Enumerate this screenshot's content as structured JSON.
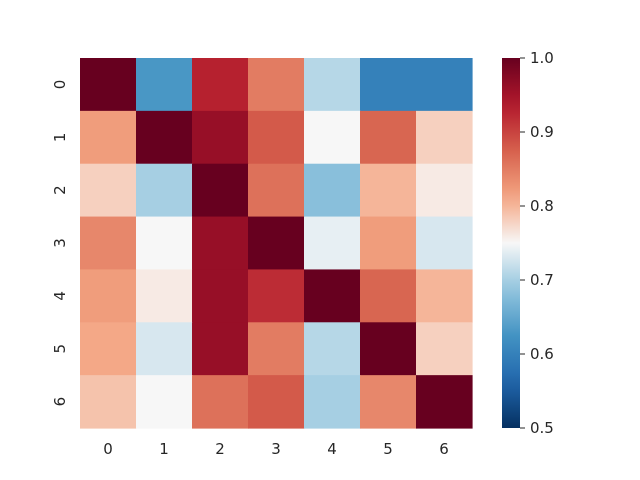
{
  "chart_data": {
    "type": "heatmap",
    "title": "",
    "xlabel": "",
    "ylabel": "",
    "x_categories": [
      "0",
      "1",
      "2",
      "3",
      "4",
      "5",
      "6"
    ],
    "y_categories": [
      "0",
      "1",
      "2",
      "3",
      "4",
      "5",
      "6"
    ],
    "values": [
      [
        1.0,
        0.63,
        0.93,
        0.85,
        0.71,
        0.6,
        0.6
      ],
      [
        0.82,
        1.0,
        0.96,
        0.88,
        0.75,
        0.87,
        0.78
      ],
      [
        0.78,
        0.7,
        1.0,
        0.86,
        0.68,
        0.8,
        0.76
      ],
      [
        0.84,
        0.75,
        0.96,
        1.0,
        0.74,
        0.82,
        0.73
      ],
      [
        0.82,
        0.76,
        0.96,
        0.92,
        1.0,
        0.87,
        0.8
      ],
      [
        0.81,
        0.73,
        0.96,
        0.85,
        0.71,
        1.0,
        0.78
      ],
      [
        0.79,
        0.75,
        0.86,
        0.88,
        0.7,
        0.84,
        1.0
      ]
    ],
    "colorbar": {
      "min": 0.5,
      "max": 1.0,
      "ticks": [
        "0.5",
        "0.6",
        "0.7",
        "0.8",
        "0.9",
        "1.0"
      ],
      "colormap": "RdBu_r"
    },
    "grid": false
  }
}
